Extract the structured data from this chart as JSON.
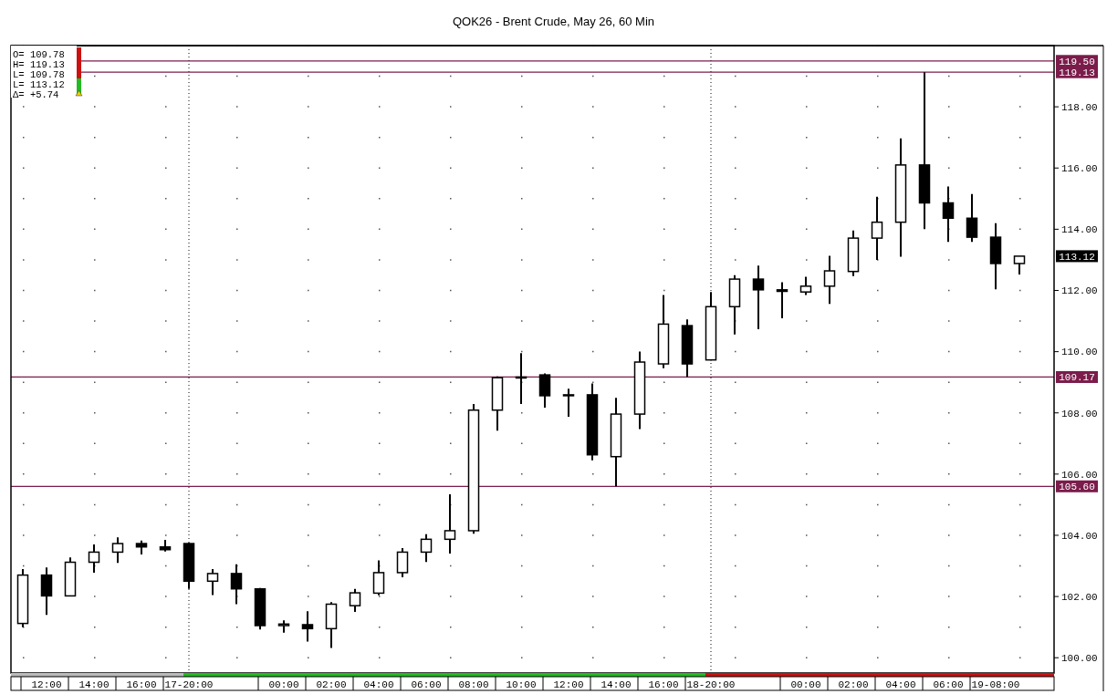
{
  "chart_data": {
    "type": "candlestick",
    "title": "QOK26 - Brent Crude, May 26, 60 Min",
    "categories": [
      null,
      "12:00",
      null,
      "14:00",
      null,
      "16:00",
      null,
      "17-20:00",
      null,
      null,
      null,
      "00:00",
      null,
      "02:00",
      null,
      "04:00",
      null,
      "06:00",
      null,
      "08:00",
      null,
      "10:00",
      null,
      "12:00",
      null,
      "14:00",
      null,
      "16:00",
      null,
      "18-20:00",
      null,
      null,
      null,
      "00:00",
      null,
      "02:00",
      null,
      "04:00",
      null,
      "06:00",
      null,
      "19-08:00",
      null
    ],
    "color": "#000000",
    "ohlc": [
      [
        101.12,
        102.9,
        101.0,
        102.7
      ],
      [
        102.7,
        102.95,
        101.4,
        102.02
      ],
      [
        102.02,
        103.28,
        102.0,
        103.12
      ],
      [
        103.12,
        103.7,
        102.78,
        103.45
      ],
      [
        103.45,
        103.93,
        103.1,
        103.73
      ],
      [
        103.73,
        103.83,
        103.37,
        103.62
      ],
      [
        103.62,
        103.85,
        103.47,
        103.53
      ],
      [
        103.73,
        103.75,
        102.25,
        102.5
      ],
      [
        102.5,
        102.9,
        102.05,
        102.75
      ],
      [
        102.75,
        103.05,
        101.75,
        102.25
      ],
      [
        102.25,
        102.28,
        100.92,
        101.05
      ],
      [
        101.05,
        101.22,
        100.82,
        101.1
      ],
      [
        101.08,
        101.52,
        100.53,
        100.95
      ],
      [
        100.95,
        101.82,
        100.32,
        101.75
      ],
      [
        101.7,
        102.25,
        101.5,
        102.12
      ],
      [
        102.11,
        103.18,
        102.04,
        102.78
      ],
      [
        102.78,
        103.58,
        102.63,
        103.45
      ],
      [
        103.45,
        104.04,
        103.13,
        103.87
      ],
      [
        103.87,
        105.34,
        103.4,
        104.15
      ],
      [
        104.15,
        108.29,
        104.05,
        108.09
      ],
      [
        108.09,
        109.19,
        107.42,
        109.15
      ],
      [
        109.14,
        109.95,
        108.29,
        109.17
      ],
      [
        109.24,
        109.29,
        108.17,
        108.56
      ],
      [
        108.56,
        108.79,
        107.87,
        108.59
      ],
      [
        108.59,
        108.96,
        106.45,
        106.63
      ],
      [
        106.57,
        108.49,
        105.6,
        107.96
      ],
      [
        107.96,
        110.0,
        107.47,
        109.66
      ],
      [
        109.6,
        111.85,
        109.46,
        110.9
      ],
      [
        110.85,
        111.05,
        109.17,
        109.6
      ],
      [
        109.73,
        111.95,
        109.71,
        111.47
      ],
      [
        111.47,
        112.5,
        110.56,
        112.37
      ],
      [
        112.37,
        112.81,
        110.73,
        112.02
      ],
      [
        112.02,
        112.27,
        111.09,
        111.97
      ],
      [
        111.95,
        112.45,
        111.85,
        112.14
      ],
      [
        112.14,
        113.13,
        111.56,
        112.64
      ],
      [
        112.62,
        113.96,
        112.47,
        113.71
      ],
      [
        113.71,
        115.06,
        113.0,
        114.23
      ],
      [
        114.23,
        116.97,
        113.1,
        116.1
      ],
      [
        116.1,
        119.13,
        114.0,
        114.86
      ],
      [
        114.86,
        115.4,
        113.59,
        114.36
      ],
      [
        114.36,
        115.15,
        113.59,
        113.74
      ],
      [
        113.74,
        114.2,
        112.04,
        112.88
      ],
      [
        112.88,
        113.12,
        112.52,
        113.12
      ]
    ],
    "ylim": [
      99.5,
      120
    ],
    "yticks": [
      {
        "value": 100,
        "label": "100.00"
      },
      {
        "value": 102,
        "label": "102.00"
      },
      {
        "value": 104,
        "label": "104.00"
      },
      {
        "value": 106,
        "label": "106.00"
      },
      {
        "value": 108,
        "label": "108.00"
      },
      {
        "value": 110,
        "label": "110.00"
      },
      {
        "value": 112,
        "label": "112.00"
      },
      {
        "value": 114,
        "label": "114.00"
      },
      {
        "value": 116,
        "label": "116.00"
      },
      {
        "value": 118,
        "label": "118.00"
      }
    ],
    "grid": true,
    "ref_lines": [
      {
        "axis": "y",
        "value": 119.5,
        "label": "119.50",
        "color": "#7b1c4b"
      },
      {
        "axis": "y",
        "value": 119.13,
        "label": "119.13",
        "color": "#7b1c4b"
      },
      {
        "axis": "y",
        "value": 109.17,
        "label": "109.17",
        "color": "#7b1c4b"
      },
      {
        "axis": "y",
        "value": 105.6,
        "label": "105.60",
        "color": "#7b1c4b"
      },
      {
        "axis": "x",
        "value": "17-20:00",
        "color": "#333333",
        "line_style": "dotted"
      },
      {
        "axis": "x",
        "value": "18-20:00",
        "color": "#333333",
        "line_style": "dotted"
      }
    ],
    "annotations": [
      "O= 109.78",
      "H= 119.13",
      "L= 109.78",
      "L= 113.12",
      "Δ= +5.74",
      "113.12"
    ]
  }
}
